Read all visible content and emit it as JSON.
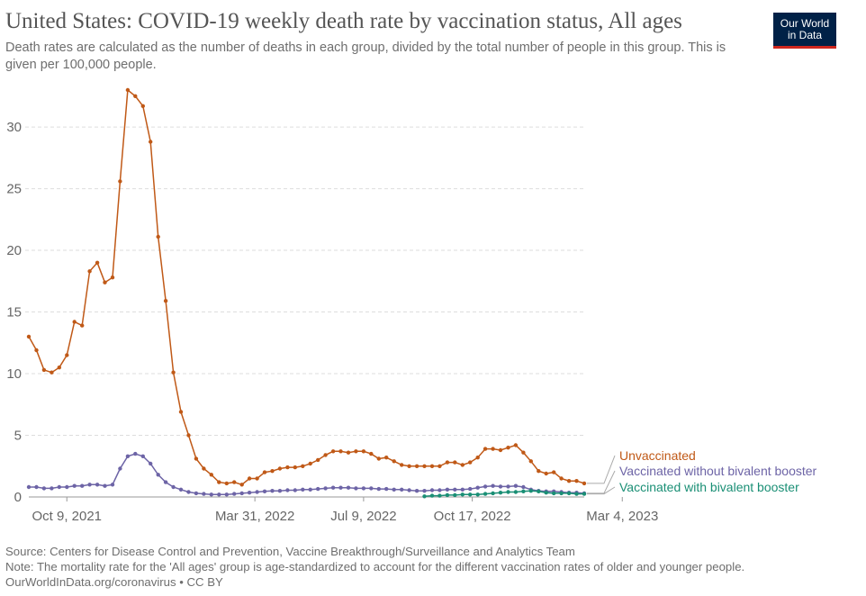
{
  "header": {
    "title": "United States: COVID-19 weekly death rate by vaccination status, All ages",
    "subtitle": "Death rates are calculated as the number of deaths in each group, divided by the total number of people in this group. This is given per 100,000 people.",
    "logo_line1": "Our World",
    "logo_line2": "in Data"
  },
  "footer": {
    "source": "Source: Centers for Disease Control and Prevention, Vaccine Breakthrough/Surveillance and Analytics Team",
    "note": "Note: The mortality rate for the 'All ages' group is age-standardized to account for the different vaccination rates of older and younger people.",
    "credit": "OurWorldInData.org/coronavirus • CC BY"
  },
  "chart_data": {
    "type": "line",
    "x_start": "2021-09-04",
    "x_step_days": 7,
    "ylim": [
      0,
      33
    ],
    "yticks": [
      0,
      5,
      10,
      15,
      20,
      25,
      30
    ],
    "grid": true,
    "legend": "right",
    "xticks": [
      {
        "date": "2021-10-09",
        "label": "Oct 9, 2021"
      },
      {
        "date": "2022-03-31",
        "label": "Mar 31, 2022"
      },
      {
        "date": "2022-07-09",
        "label": "Jul 9, 2022"
      },
      {
        "date": "2022-10-17",
        "label": "Oct 17, 2022"
      },
      {
        "date": "2023-03-04",
        "label": "Mar 4, 2023"
      }
    ],
    "series": [
      {
        "name": "Unvaccinated",
        "color": "#c05917",
        "start_index": 0,
        "values": [
          13.0,
          11.9,
          10.3,
          10.1,
          10.5,
          11.5,
          14.2,
          13.9,
          18.3,
          19.0,
          17.4,
          17.8,
          25.6,
          33.0,
          32.5,
          31.7,
          28.8,
          21.1,
          15.9,
          10.1,
          6.9,
          5.0,
          3.1,
          2.3,
          1.8,
          1.2,
          1.1,
          1.2,
          1.0,
          1.5,
          1.5,
          2.0,
          2.1,
          2.3,
          2.4,
          2.4,
          2.5,
          2.7,
          3.0,
          3.4,
          3.7,
          3.7,
          3.6,
          3.7,
          3.7,
          3.5,
          3.1,
          3.2,
          2.9,
          2.6,
          2.5,
          2.5,
          2.5,
          2.5,
          2.5,
          2.8,
          2.8,
          2.6,
          2.8,
          3.2,
          3.9,
          3.9,
          3.8,
          4.0,
          4.2,
          3.6,
          2.9,
          2.1,
          1.9,
          2.0,
          1.5,
          1.3,
          1.3,
          1.1
        ]
      },
      {
        "name": "Vaccinated without bivalent booster",
        "color": "#6d64a6",
        "start_index": 0,
        "values": [
          0.8,
          0.8,
          0.7,
          0.7,
          0.8,
          0.8,
          0.9,
          0.9,
          1.0,
          1.0,
          0.9,
          1.0,
          2.3,
          3.3,
          3.5,
          3.3,
          2.7,
          1.8,
          1.2,
          0.8,
          0.6,
          0.4,
          0.3,
          0.25,
          0.2,
          0.2,
          0.2,
          0.25,
          0.3,
          0.35,
          0.4,
          0.45,
          0.5,
          0.5,
          0.55,
          0.55,
          0.6,
          0.6,
          0.65,
          0.7,
          0.75,
          0.75,
          0.75,
          0.7,
          0.7,
          0.7,
          0.65,
          0.65,
          0.6,
          0.6,
          0.55,
          0.5,
          0.5,
          0.55,
          0.55,
          0.6,
          0.6,
          0.6,
          0.65,
          0.75,
          0.85,
          0.9,
          0.85,
          0.85,
          0.9,
          0.8,
          0.6,
          0.5,
          0.45,
          0.45,
          0.4,
          0.35,
          0.35,
          0.3
        ]
      },
      {
        "name": "Vaccinated with bivalent booster",
        "color": "#1a8f75",
        "start_index": 52,
        "values": [
          0.05,
          0.1,
          0.1,
          0.15,
          0.15,
          0.2,
          0.2,
          0.2,
          0.25,
          0.3,
          0.35,
          0.4,
          0.4,
          0.45,
          0.5,
          0.45,
          0.35,
          0.3,
          0.3,
          0.3,
          0.25,
          0.25
        ]
      }
    ]
  }
}
